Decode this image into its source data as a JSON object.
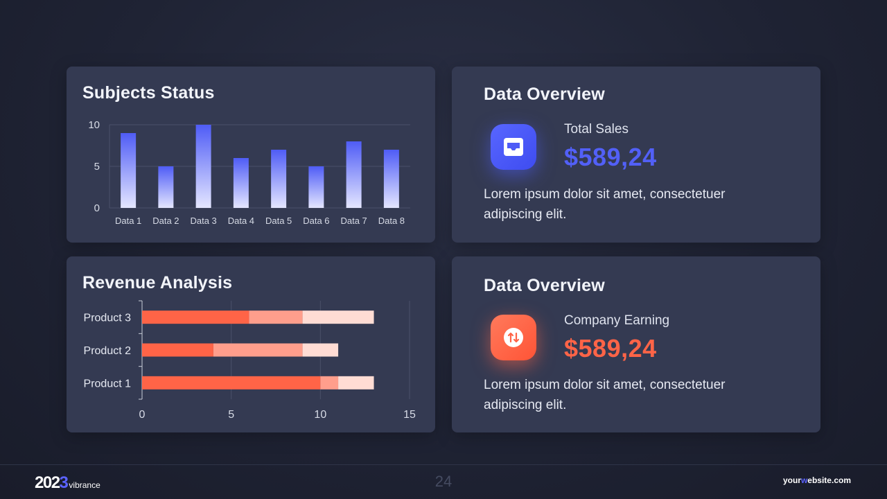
{
  "page": {
    "number": "24"
  },
  "footer": {
    "brand_prefix": "202",
    "brand_accent": "3",
    "brand_suffix": "vibrance",
    "site_prefix": "your",
    "site_accent": "w",
    "site_suffix": "ebsite.com"
  },
  "colors": {
    "blue": "#4f5cf6",
    "orange": "#ff6447",
    "orange_mid": "#ff9e8c",
    "orange_light": "#ffdcd4"
  },
  "subjects": {
    "title": "Subjects Status"
  },
  "revenue": {
    "title": "Revenue Analysis"
  },
  "overview1": {
    "title": "Data Overview",
    "label": "Total Sales",
    "value": "$589,24",
    "desc": "Lorem ipsum dolor sit amet, consectetuer adipiscing elit.",
    "icon": "inbox-icon"
  },
  "overview2": {
    "title": "Data Overview",
    "label": "Company Earning",
    "value": "$589,24",
    "desc": "Lorem ipsum dolor sit amet, consectetuer adipiscing elit.",
    "icon": "swap-arrows-icon"
  },
  "chart_data": [
    {
      "type": "bar",
      "title": "Subjects Status",
      "categories": [
        "Data 1",
        "Data 2",
        "Data 3",
        "Data 4",
        "Data 5",
        "Data 6",
        "Data 7",
        "Data 8"
      ],
      "values": [
        9,
        5,
        10,
        6,
        7,
        5,
        8,
        7
      ],
      "ylim": [
        0,
        10
      ],
      "yticks": [
        0,
        5,
        10
      ],
      "grid": true
    },
    {
      "type": "bar",
      "orientation": "horizontal",
      "stacked": true,
      "title": "Revenue Analysis",
      "categories": [
        "Product 1",
        "Product 2",
        "Product 3"
      ],
      "series": [
        {
          "values": [
            10,
            4,
            6
          ]
        },
        {
          "values": [
            1,
            5,
            3
          ]
        },
        {
          "values": [
            2,
            2,
            4
          ]
        }
      ],
      "xlim": [
        0,
        15
      ],
      "xticks": [
        0,
        5,
        10,
        15
      ],
      "grid": true
    }
  ]
}
